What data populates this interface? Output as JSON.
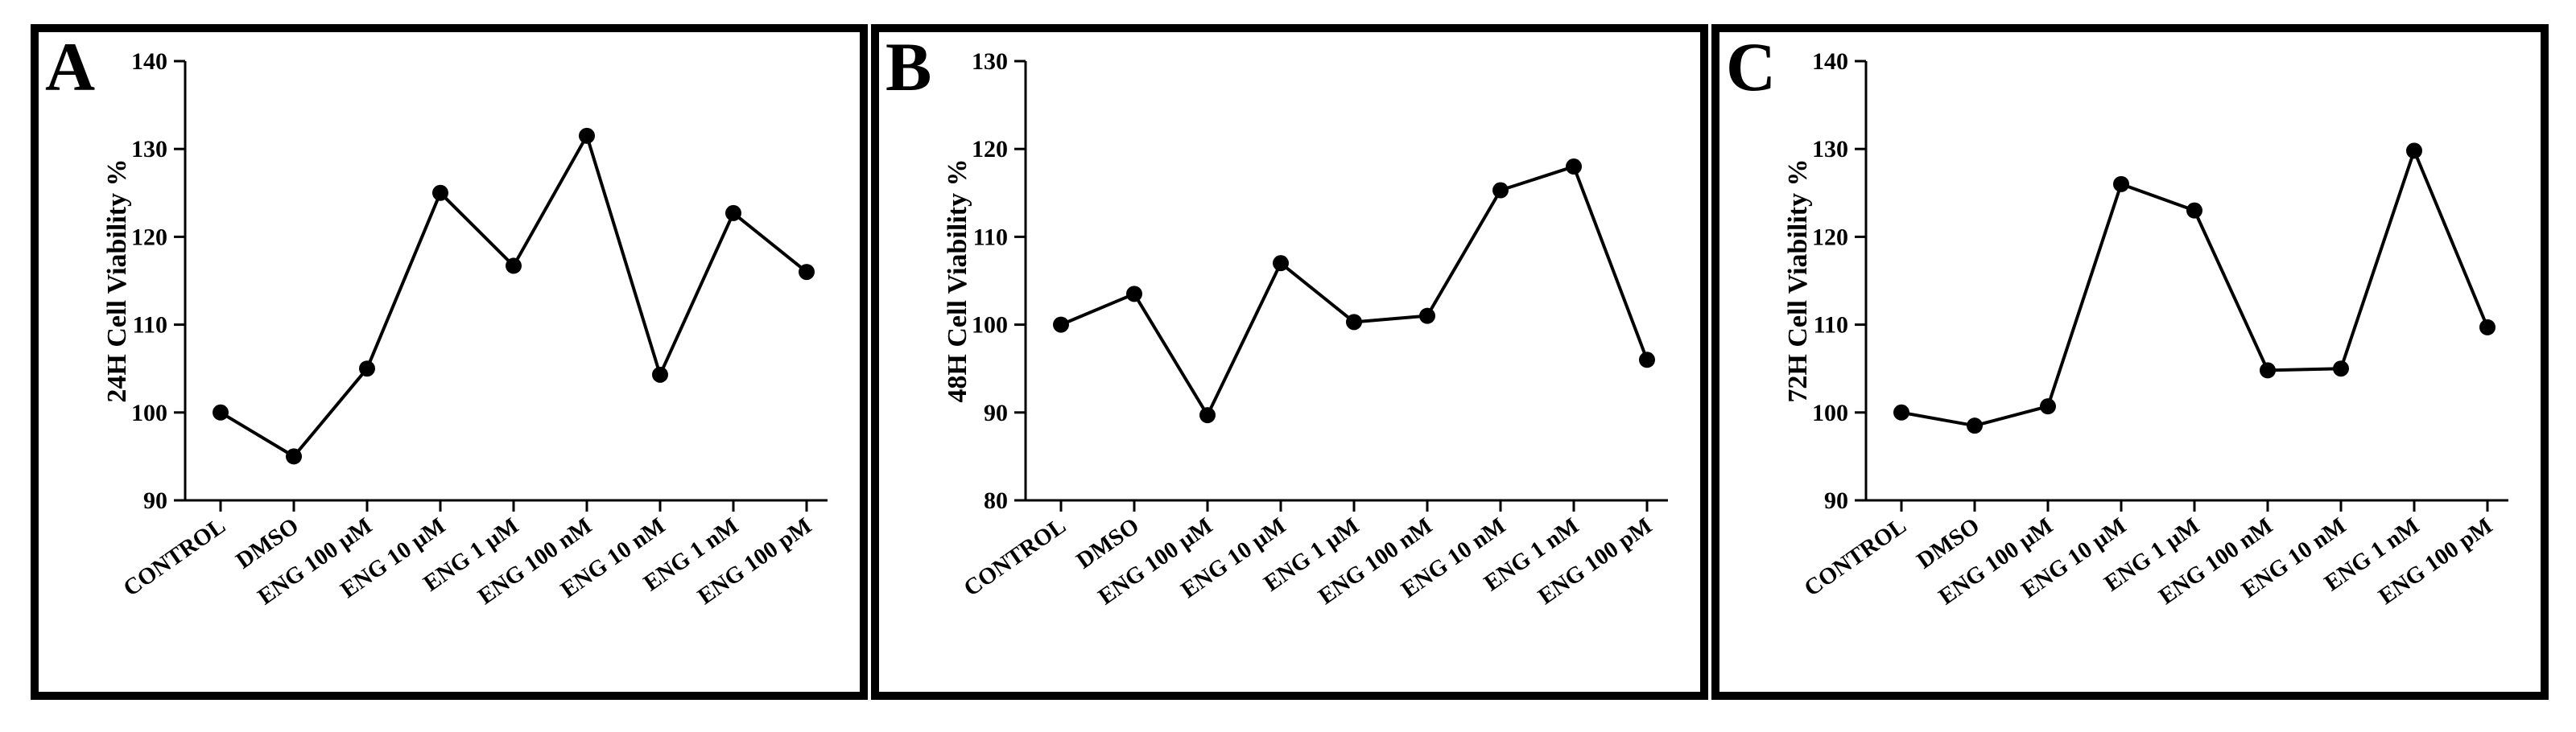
{
  "chart_data": [
    {
      "type": "line",
      "panel_label": "A",
      "ylabel": "24H Cell Viability %",
      "xlabel": "",
      "categories": [
        "CONTROL",
        "DMSO",
        "ENG 100 µM",
        "ENG 10 µM",
        "ENG 1 µM",
        "ENG 100 nM",
        "ENG 10 nM",
        "ENG 1 nM",
        "ENG 100 pM"
      ],
      "values": [
        100,
        95,
        105,
        125,
        116.7,
        131.5,
        104.3,
        122.7,
        116
      ],
      "ylim": [
        90,
        140
      ],
      "yticks": [
        90,
        100,
        110,
        120,
        130,
        140
      ],
      "grid": false,
      "color": "#000000"
    },
    {
      "type": "line",
      "panel_label": "B",
      "ylabel": "48H Cell Viability %",
      "xlabel": "",
      "categories": [
        "CONTROL",
        "DMSO",
        "ENG 100 µM",
        "ENG 10 µM",
        "ENG 1 µM",
        "ENG 100 nM",
        "ENG 10 nM",
        "ENG 1 nM",
        "ENG 100 pM"
      ],
      "values": [
        100,
        103.5,
        89.7,
        107,
        100.3,
        101,
        115.3,
        118,
        96
      ],
      "ylim": [
        80,
        130
      ],
      "yticks": [
        80,
        90,
        100,
        110,
        120,
        130
      ],
      "grid": false,
      "color": "#000000"
    },
    {
      "type": "line",
      "panel_label": "C",
      "ylabel": "72H Cell Viability %",
      "xlabel": "",
      "categories": [
        "CONTROL",
        "DMSO",
        "ENG 100 µM",
        "ENG 10 µM",
        "ENG 1 µM",
        "ENG 100 nM",
        "ENG 10 nM",
        "ENG 1 nM",
        "ENG 100 pM"
      ],
      "values": [
        100,
        98.5,
        100.7,
        126,
        123,
        104.8,
        105,
        129.8,
        109.7
      ],
      "ylim": [
        90,
        140
      ],
      "yticks": [
        90,
        100,
        110,
        120,
        130,
        140
      ],
      "grid": false,
      "color": "#000000"
    }
  ]
}
